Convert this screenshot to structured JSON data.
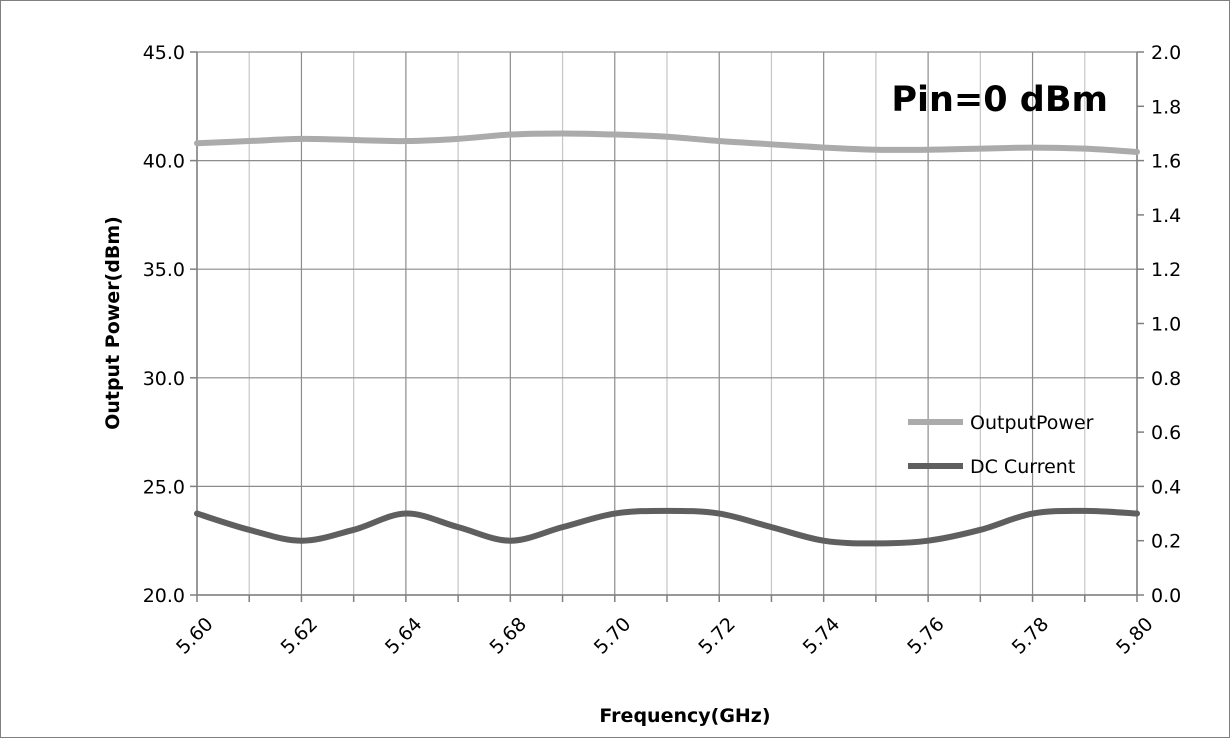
{
  "chart_data": {
    "type": "line",
    "title": "",
    "annotation": "Pin=0 dBm",
    "xlabel": "Frequency(GHz)",
    "ylabel": "Output Power(dBm)",
    "ylabel_right": "",
    "categories": [
      "5.60",
      "",
      "5.62",
      "",
      "5.64",
      "",
      "5.68",
      "",
      "5.70",
      "",
      "5.72",
      "",
      "5.74",
      "",
      "5.76",
      "",
      "5.78",
      "",
      "5.80"
    ],
    "ylim": [
      20.0,
      45.0
    ],
    "yticks": [
      "20.0",
      "25.0",
      "30.0",
      "35.0",
      "40.0",
      "45.0"
    ],
    "ylim_right": [
      0.0,
      2.0
    ],
    "yticks_right": [
      "0.0",
      "0.2",
      "0.4",
      "0.6",
      "0.8",
      "1.0",
      "1.2",
      "1.4",
      "1.6",
      "1.8",
      "2.0"
    ],
    "grid": true,
    "legend_position": "right",
    "series": [
      {
        "name": "OutputPower",
        "axis": "left",
        "color": "#ababab",
        "values": [
          40.8,
          40.9,
          41.0,
          40.95,
          40.9,
          41.0,
          41.2,
          41.25,
          41.2,
          41.1,
          40.9,
          40.75,
          40.6,
          40.5,
          40.5,
          40.55,
          40.6,
          40.55,
          40.4
        ]
      },
      {
        "name": "DC Current",
        "axis": "right",
        "color": "#5f5f5f",
        "values": [
          0.3,
          0.24,
          0.2,
          0.24,
          0.3,
          0.25,
          0.2,
          0.25,
          0.3,
          0.31,
          0.3,
          0.25,
          0.2,
          0.19,
          0.2,
          0.24,
          0.3,
          0.31,
          0.3
        ]
      }
    ]
  }
}
